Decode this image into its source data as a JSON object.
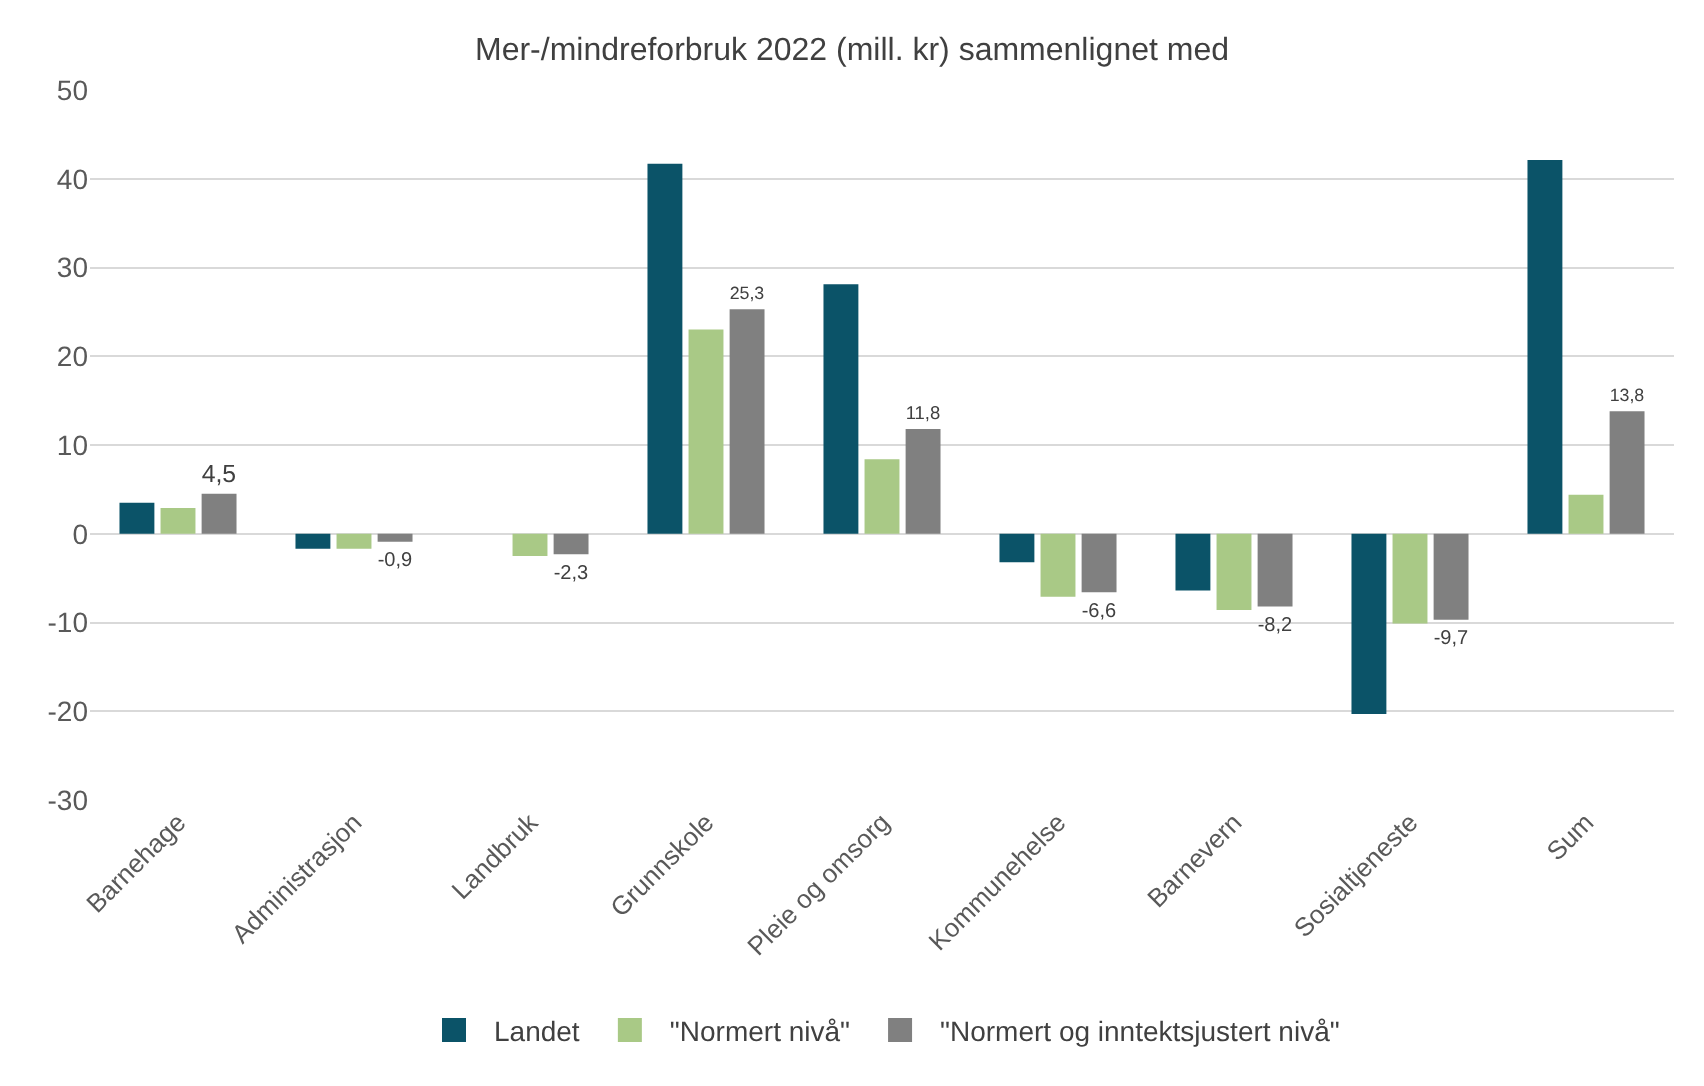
{
  "chart_data": {
    "type": "bar",
    "title": "Mer-/mindreforbruk 2022 (mill. kr) sammenlignet med",
    "categories": [
      "Barnehage",
      "Administrasjon",
      "Landbruk",
      "Grunnskole",
      "Pleie og omsorg",
      "Kommunehelse",
      "Barnevern",
      "Sosialtjeneste",
      "Sum"
    ],
    "series": [
      {
        "name": "Landet",
        "color": "#0b5368",
        "values": [
          3.5,
          -1.7,
          null,
          41.7,
          28.1,
          -3.2,
          -6.4,
          -20.3,
          42.1
        ]
      },
      {
        "name": "\"Normert nivå\"",
        "color": "#a9c986",
        "values": [
          2.9,
          -1.7,
          -2.5,
          23.0,
          8.4,
          -7.1,
          -8.6,
          -10.1,
          4.4
        ]
      },
      {
        "name": "\"Normert og inntektsjustert nivå\"",
        "color": "#808080",
        "values": [
          4.5,
          -0.9,
          -2.3,
          25.3,
          11.8,
          -6.6,
          -8.2,
          -9.7,
          13.8
        ],
        "value_labels": [
          "4,5",
          "-0,9",
          "-2,3",
          "25,3",
          "11,8",
          "-6,6",
          "-8,2",
          "-9,7",
          "13,8"
        ]
      }
    ],
    "ylim": [
      -30,
      50
    ],
    "yticks": [
      -30,
      -20,
      -10,
      0,
      10,
      20,
      30,
      40,
      50
    ],
    "grid": "y",
    "legend": "bottom"
  }
}
